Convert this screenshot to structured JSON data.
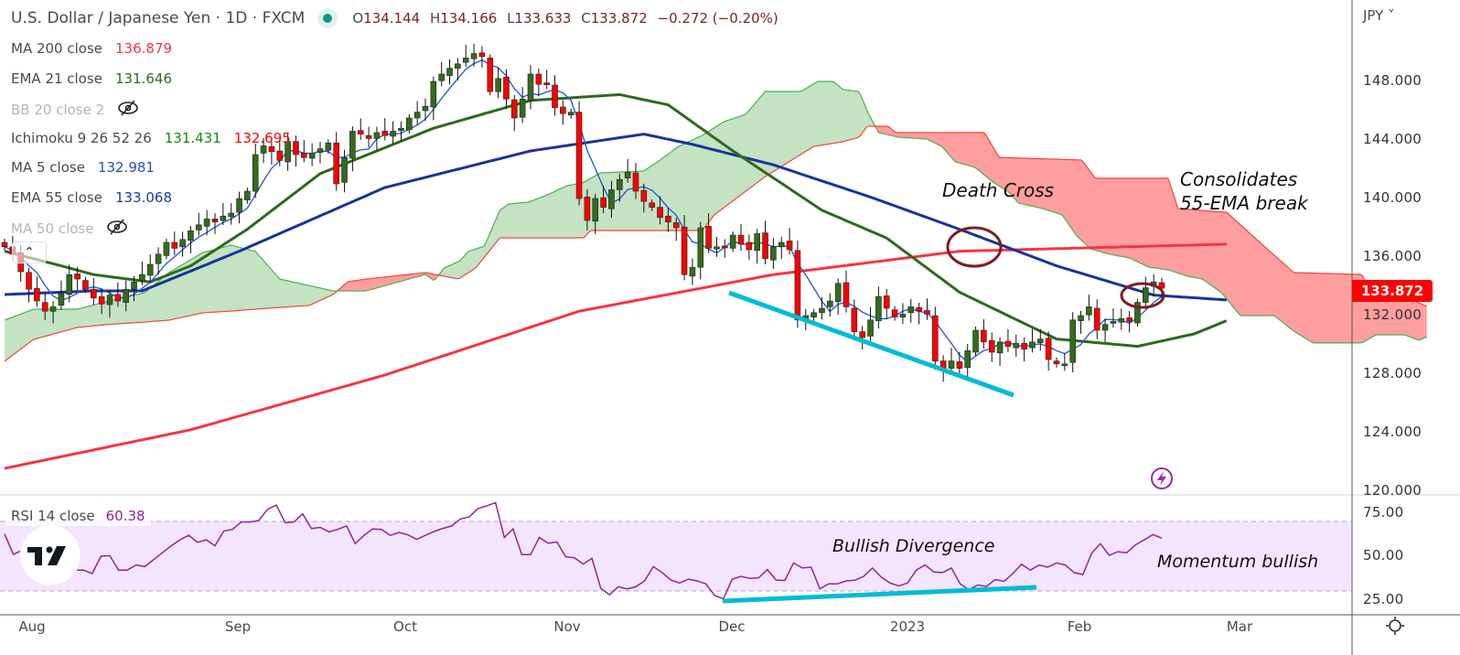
{
  "header": {
    "title": "U.S. Dollar / Japanese Yen · 1D · FXCM",
    "ohlc": {
      "o_label": "O",
      "o": "134.144",
      "h_label": "H",
      "h": "134.166",
      "l_label": "L",
      "l": "133.633",
      "c_label": "C",
      "c": "133.872",
      "change": "−0.272 (−0.20%)"
    }
  },
  "legend": [
    {
      "label": "MA 200 close",
      "values": [
        "136.879"
      ],
      "colors": [
        "#f23645"
      ],
      "hidden": false
    },
    {
      "label": "EMA 21 close",
      "values": [
        "131.646"
      ],
      "colors": [
        "#2d6a1e"
      ],
      "hidden": false
    },
    {
      "label": "BB 20 close 2",
      "values": [],
      "colors": [],
      "hidden": true
    },
    {
      "label": "Ichimoku 9 26 52 26",
      "values": [
        "131.431",
        "132.695"
      ],
      "colors": [
        "#138a13",
        "#ff0000"
      ],
      "hidden": false
    },
    {
      "label": "MA 5 close",
      "values": [
        "132.981"
      ],
      "colors": [
        "#2250c8"
      ],
      "hidden": false
    },
    {
      "label": "EMA 55 close",
      "values": [
        "133.068"
      ],
      "colors": [
        "#1a3b9e"
      ],
      "hidden": false
    },
    {
      "label": "MA 50 close",
      "values": [],
      "colors": [],
      "hidden": true
    }
  ],
  "price_axis": {
    "currency": "JPY",
    "ticks": [
      "148.000",
      "144.000",
      "140.000",
      "136.000",
      "132.000",
      "128.000",
      "124.000",
      "120.000"
    ],
    "last_price": "133.872"
  },
  "rsi_axis": {
    "ticks": [
      "75.00",
      "50.00",
      "25.00"
    ]
  },
  "time_axis": [
    "Aug",
    "Sep",
    "Oct",
    "Nov",
    "Dec",
    "2023",
    "Feb",
    "Mar"
  ],
  "rsi_legend": {
    "label": "RSI 14 close",
    "value": "60.38"
  },
  "annotations": {
    "death_cross": "Death Cross",
    "consolidates_1": "Consolidates",
    "consolidates_2": "55-EMA break",
    "bullish_divergence": "Bullish Divergence",
    "momentum": "Momentum bullish"
  },
  "colors": {
    "up": "#336b1d",
    "down": "#ff0000",
    "ma200": "#f23645",
    "ema21": "#2d6a1e",
    "ema55": "#1a3399",
    "ma5": "#1e53e5",
    "rsi": "#8e24aa",
    "cloud_up": "#c3e3c3",
    "cloud_down": "#ff9e9e",
    "trendline": "#00bcd4",
    "circle": "#7b1f24"
  },
  "chart_data": [
    {
      "type": "candlestick",
      "title": "U.S. Dollar / Japanese Yen · 1D · FXCM",
      "x_unit": "bar index (daily)",
      "ylim": [
        120,
        150
      ],
      "closes": [
        136.7,
        136.2,
        135.0,
        133.8,
        133.0,
        132.3,
        132.6,
        133.5,
        134.8,
        134.5,
        133.8,
        133.2,
        132.8,
        133.4,
        133.0,
        133.8,
        134.3,
        134.8,
        135.5,
        136.2,
        137.0,
        136.6,
        137.2,
        137.8,
        138.2,
        138.6,
        138.4,
        138.8,
        139.0,
        140.0,
        140.5,
        143.0,
        143.6,
        143.2,
        142.6,
        143.9,
        143.0,
        142.8,
        143.1,
        143.4,
        143.8,
        141.0,
        142.8,
        144.6,
        144.4,
        144.1,
        144.5,
        144.3,
        144.6,
        144.8,
        145.5,
        145.9,
        146.3,
        148.0,
        148.5,
        148.9,
        149.2,
        149.6,
        149.9,
        149.7,
        147.3,
        148.2,
        146.8,
        145.5,
        146.8,
        148.5,
        147.8,
        147.8,
        146.2,
        145.8,
        145.9,
        140.0,
        138.5,
        140.0,
        139.4,
        140.6,
        141.3,
        141.8,
        140.5,
        139.8,
        139.4,
        138.7,
        138.4,
        138.0,
        134.8,
        135.3,
        138.0,
        136.6,
        136.7,
        136.7,
        137.5,
        136.9,
        136.5,
        137.6,
        135.9,
        136.7,
        137.0,
        136.5,
        131.7,
        132.0,
        132.2,
        132.5,
        133.0,
        134.2,
        132.6,
        130.9,
        130.5,
        131.7,
        133.3,
        132.5,
        131.9,
        132.1,
        132.6,
        132.3,
        132.1,
        128.9,
        128.3,
        128.9,
        128.4,
        129.6,
        131.0,
        130.2,
        129.5,
        130.2,
        129.9,
        130.1,
        129.7,
        130.2,
        130.4,
        129.0,
        128.7,
        128.7,
        131.7,
        132.0,
        132.6,
        131.0,
        131.4,
        131.6,
        131.8,
        131.6,
        132.9,
        133.9,
        134.3,
        133.872
      ],
      "ma200": [
        [
          0,
          121.56
        ],
        [
          23,
          124.2
        ],
        [
          47,
          127.94
        ],
        [
          71,
          132.3
        ],
        [
          95,
          134.8
        ],
        [
          118,
          136.4
        ],
        [
          151,
          136.88
        ]
      ],
      "ema55": [
        [
          0,
          133.44
        ],
        [
          11,
          133.69
        ],
        [
          17,
          133.69
        ],
        [
          29,
          136.4
        ],
        [
          47,
          140.75
        ],
        [
          65,
          143.25
        ],
        [
          79,
          144.4
        ],
        [
          85,
          143.7
        ],
        [
          95,
          142.3
        ],
        [
          107,
          140.1
        ],
        [
          118,
          137.9
        ],
        [
          130,
          135.4
        ],
        [
          142,
          133.4
        ],
        [
          151,
          133.07
        ]
      ],
      "ema21": [
        [
          0,
          136.4
        ],
        [
          7,
          135.4
        ],
        [
          11,
          134.8
        ],
        [
          18,
          134.3
        ],
        [
          23,
          135.4
        ],
        [
          30,
          137.9
        ],
        [
          39,
          141.7
        ],
        [
          53,
          144.8
        ],
        [
          65,
          146.7
        ],
        [
          76,
          147.1
        ],
        [
          82,
          146.4
        ],
        [
          90,
          143.25
        ],
        [
          101,
          139.2
        ],
        [
          109,
          137.3
        ],
        [
          118,
          133.6
        ],
        [
          130,
          130.4
        ],
        [
          140,
          129.9
        ],
        [
          147,
          130.75
        ],
        [
          151,
          131.65
        ]
      ],
      "ichimoku_span_a": [
        [
          0,
          131.69
        ],
        [
          3.6,
          132.44
        ],
        [
          9,
          132.44
        ],
        [
          12.5,
          132.94
        ],
        [
          17.3,
          133.56
        ],
        [
          20.3,
          134.94
        ],
        [
          24.5,
          136.31
        ],
        [
          28,
          136.81
        ],
        [
          31,
          136.38
        ],
        [
          34,
          134.5
        ],
        [
          37.6,
          134.06
        ],
        [
          40.6,
          133.69
        ],
        [
          44.7,
          133.69
        ],
        [
          52,
          134.81
        ],
        [
          53.1,
          134.38
        ],
        [
          54.3,
          135.25
        ],
        [
          56.3,
          135.75
        ],
        [
          57.3,
          136.38
        ],
        [
          59.3,
          136.75
        ],
        [
          61.2,
          139.19
        ],
        [
          62.3,
          139.63
        ],
        [
          64.7,
          139.75
        ],
        [
          67.1,
          140.25
        ],
        [
          69.5,
          140.88
        ],
        [
          71.4,
          141.06
        ],
        [
          73.6,
          141.75
        ],
        [
          79,
          141.88
        ],
        [
          80.5,
          142.44
        ],
        [
          83.3,
          143.56
        ],
        [
          86.2,
          144.31
        ],
        [
          88.9,
          145.25
        ],
        [
          91.6,
          145.75
        ],
        [
          94,
          147.31
        ],
        [
          98.4,
          147.31
        ],
        [
          100.5,
          148.0
        ],
        [
          102.4,
          148.0
        ],
        [
          103.6,
          147.44
        ],
        [
          105.6,
          147.31
        ],
        [
          106.8,
          145.75
        ],
        [
          108,
          144.5
        ],
        [
          110.4,
          144.19
        ],
        [
          114,
          144.06
        ],
        [
          115.8,
          143.56
        ],
        [
          117.5,
          142.5
        ],
        [
          119.9,
          142.13
        ],
        [
          122.3,
          141.06
        ],
        [
          124.1,
          140.44
        ],
        [
          125.3,
          139.69
        ],
        [
          128.3,
          139.31
        ],
        [
          130.7,
          138.88
        ],
        [
          132.5,
          137.44
        ],
        [
          134.2,
          136.56
        ],
        [
          136.6,
          136.19
        ],
        [
          139,
          135.94
        ],
        [
          141.4,
          135.31
        ],
        [
          143.8,
          135.13
        ],
        [
          146.2,
          134.69
        ],
        [
          148,
          134.5
        ],
        [
          150.4,
          133.56
        ],
        [
          152.7,
          132.0
        ],
        [
          156.9,
          132.0
        ],
        [
          159.3,
          130.94
        ],
        [
          161.7,
          130.13
        ],
        [
          167.7,
          130.13
        ],
        [
          169.5,
          130.69
        ],
        [
          173,
          130.69
        ],
        [
          174.8,
          130.31
        ],
        [
          175.8,
          130.56
        ]
      ],
      "ichimoku_span_b": [
        [
          0,
          128.88
        ],
        [
          3.6,
          130.38
        ],
        [
          9,
          131.19
        ],
        [
          12.5,
          131.38
        ],
        [
          17.3,
          131.56
        ],
        [
          20.3,
          131.69
        ],
        [
          24.5,
          132.19
        ],
        [
          28,
          132.31
        ],
        [
          34,
          132.56
        ],
        [
          37.6,
          132.69
        ],
        [
          40.6,
          133.44
        ],
        [
          42.4,
          134.31
        ],
        [
          44.7,
          134.5
        ],
        [
          52,
          134.94
        ],
        [
          56.1,
          134.5
        ],
        [
          58.2,
          135.25
        ],
        [
          61.2,
          137.31
        ],
        [
          71.6,
          137.31
        ],
        [
          72.4,
          137.81
        ],
        [
          86.2,
          137.81
        ],
        [
          87.7,
          138.88
        ],
        [
          94,
          141.5
        ],
        [
          100,
          143.56
        ],
        [
          103.6,
          143.88
        ],
        [
          105.6,
          144.19
        ],
        [
          106.6,
          144.94
        ],
        [
          109.2,
          144.94
        ],
        [
          110.1,
          144.5
        ],
        [
          121.1,
          144.5
        ],
        [
          122.9,
          142.81
        ],
        [
          133.1,
          142.63
        ],
        [
          134.8,
          141.38
        ],
        [
          143.8,
          141.38
        ],
        [
          145,
          139.31
        ],
        [
          151,
          139.06
        ],
        [
          154.5,
          137.31
        ],
        [
          159.3,
          134.94
        ],
        [
          167.7,
          134.81
        ],
        [
          168.9,
          133.56
        ],
        [
          172.4,
          133.44
        ],
        [
          175.8,
          132.63
        ]
      ],
      "trendline_price": [
        [
          95,
          134.0
        ],
        [
          132,
          127.0
        ]
      ]
    },
    {
      "type": "line",
      "title": "RSI 14 close",
      "ylim": [
        20,
        85
      ],
      "bands": [
        30,
        70
      ],
      "values": [
        62.8,
        51,
        53.4,
        50,
        47,
        45,
        44,
        43,
        42,
        42,
        40,
        50,
        50.3,
        42,
        42,
        45,
        44,
        48,
        52,
        56,
        59.4,
        62,
        58,
        59.4,
        56,
        64.5,
        65.4,
        69.7,
        69.7,
        70.5,
        77,
        79.4,
        69.3,
        69.7,
        74.3,
        65.9,
        66.6,
        64,
        65.4,
        67.4,
        57.2,
        62,
        65.7,
        65.4,
        62,
        63.7,
        62.3,
        59.7,
        62,
        64.2,
        66,
        67.4,
        71.4,
        72.6,
        77.4,
        79,
        80.8,
        60.8,
        65.7,
        50.9,
        50.9,
        60.8,
        57.4,
        58.2,
        49.7,
        49.1,
        45.4,
        48.8,
        31.5,
        27.8,
        32.4,
        31.2,
        32.4,
        35.8,
        44,
        40.6,
        36.3,
        34.6,
        36.8,
        35.8,
        34.1,
        27.3,
        25.6,
        36.8,
        38.4,
        37.2,
        37.5,
        42.3,
        36.3,
        36,
        46.1,
        43.2,
        43.7,
        31.2,
        34.1,
        34.1,
        35.8,
        36.2,
        38.4,
        43.2,
        38,
        34.6,
        32.9,
        34.6,
        42,
        45,
        40.9,
        40.6,
        43.2,
        34.1,
        30.7,
        33.4,
        32.6,
        36.5,
        35.5,
        40,
        45.4,
        42,
        44.9,
        43.7,
        46.1,
        44.9,
        40.6,
        39.4,
        51.7,
        57.2,
        50.5,
        52.6,
        52,
        56.5,
        59.4,
        62.5,
        60.38
      ],
      "trendline_rsi": [
        [
          94,
          25
        ],
        [
          135,
          32
        ]
      ]
    }
  ]
}
